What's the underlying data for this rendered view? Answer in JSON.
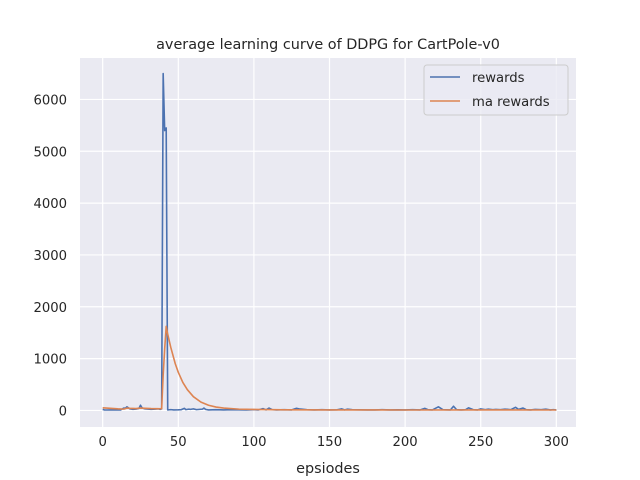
{
  "chart_data": {
    "type": "line",
    "title": "average learning curve of DDPG for CartPole-v0",
    "xlabel": "epsiodes",
    "ylabel": "",
    "xlim": [
      -15,
      313
    ],
    "ylim": [
      -320,
      6800
    ],
    "xticks": [
      0,
      50,
      100,
      150,
      200,
      250,
      300
    ],
    "yticks": [
      0,
      1000,
      2000,
      3000,
      4000,
      5000,
      6000
    ],
    "grid": true,
    "legend_position": "top-right",
    "series": [
      {
        "name": "rewards",
        "color": "#4c72b0",
        "points": [
          [
            0,
            20
          ],
          [
            1,
            10
          ],
          [
            3,
            8
          ],
          [
            5,
            9
          ],
          [
            8,
            10
          ],
          [
            10,
            12
          ],
          [
            12,
            10
          ],
          [
            13,
            30
          ],
          [
            14,
            45
          ],
          [
            15,
            40
          ],
          [
            16,
            70
          ],
          [
            17,
            50
          ],
          [
            18,
            30
          ],
          [
            20,
            20
          ],
          [
            22,
            25
          ],
          [
            24,
            40
          ],
          [
            25,
            100
          ],
          [
            26,
            50
          ],
          [
            28,
            30
          ],
          [
            30,
            25
          ],
          [
            32,
            20
          ],
          [
            35,
            25
          ],
          [
            37,
            30
          ],
          [
            38,
            20
          ],
          [
            39,
            30
          ],
          [
            40,
            6500
          ],
          [
            41,
            5400
          ],
          [
            42,
            5450
          ],
          [
            43,
            10
          ],
          [
            45,
            15
          ],
          [
            47,
            10
          ],
          [
            50,
            12
          ],
          [
            52,
            15
          ],
          [
            54,
            40
          ],
          [
            55,
            15
          ],
          [
            57,
            25
          ],
          [
            58,
            20
          ],
          [
            60,
            30
          ],
          [
            62,
            15
          ],
          [
            64,
            20
          ],
          [
            66,
            25
          ],
          [
            67,
            45
          ],
          [
            68,
            20
          ],
          [
            70,
            10
          ],
          [
            75,
            15
          ],
          [
            80,
            10
          ],
          [
            85,
            15
          ],
          [
            90,
            12
          ],
          [
            95,
            10
          ],
          [
            100,
            15
          ],
          [
            103,
            10
          ],
          [
            106,
            35
          ],
          [
            108,
            10
          ],
          [
            110,
            45
          ],
          [
            112,
            15
          ],
          [
            115,
            10
          ],
          [
            120,
            15
          ],
          [
            125,
            10
          ],
          [
            128,
            40
          ],
          [
            130,
            30
          ],
          [
            135,
            15
          ],
          [
            140,
            10
          ],
          [
            145,
            15
          ],
          [
            150,
            10
          ],
          [
            155,
            12
          ],
          [
            158,
            30
          ],
          [
            160,
            10
          ],
          [
            162,
            25
          ],
          [
            165,
            15
          ],
          [
            170,
            12
          ],
          [
            175,
            10
          ],
          [
            180,
            10
          ],
          [
            185,
            15
          ],
          [
            190,
            10
          ],
          [
            195,
            12
          ],
          [
            200,
            10
          ],
          [
            205,
            15
          ],
          [
            210,
            10
          ],
          [
            213,
            40
          ],
          [
            215,
            15
          ],
          [
            218,
            10
          ],
          [
            222,
            70
          ],
          [
            225,
            15
          ],
          [
            230,
            10
          ],
          [
            232,
            80
          ],
          [
            234,
            15
          ],
          [
            237,
            10
          ],
          [
            240,
            15
          ],
          [
            242,
            50
          ],
          [
            245,
            15
          ],
          [
            248,
            10
          ],
          [
            250,
            30
          ],
          [
            253,
            15
          ],
          [
            255,
            25
          ],
          [
            258,
            15
          ],
          [
            260,
            20
          ],
          [
            263,
            15
          ],
          [
            266,
            25
          ],
          [
            270,
            15
          ],
          [
            273,
            60
          ],
          [
            275,
            20
          ],
          [
            278,
            45
          ],
          [
            280,
            15
          ],
          [
            283,
            10
          ],
          [
            286,
            20
          ],
          [
            290,
            15
          ],
          [
            293,
            25
          ],
          [
            296,
            10
          ],
          [
            298,
            15
          ],
          [
            300,
            10
          ]
        ]
      },
      {
        "name": "ma rewards",
        "color": "#dd8452",
        "points": [
          [
            0,
            50
          ],
          [
            5,
            40
          ],
          [
            10,
            30
          ],
          [
            14,
            25
          ],
          [
            16,
            45
          ],
          [
            18,
            40
          ],
          [
            22,
            35
          ],
          [
            25,
            45
          ],
          [
            28,
            40
          ],
          [
            32,
            35
          ],
          [
            36,
            33
          ],
          [
            39,
            32
          ],
          [
            40,
            680
          ],
          [
            41,
            1190
          ],
          [
            42,
            1620
          ],
          [
            43,
            1470
          ],
          [
            45,
            1220
          ],
          [
            48,
            900
          ],
          [
            50,
            735
          ],
          [
            53,
            540
          ],
          [
            56,
            400
          ],
          [
            60,
            265
          ],
          [
            65,
            160
          ],
          [
            70,
            100
          ],
          [
            75,
            65
          ],
          [
            80,
            45
          ],
          [
            90,
            25
          ],
          [
            100,
            18
          ],
          [
            120,
            12
          ],
          [
            150,
            10
          ],
          [
            200,
            8
          ],
          [
            250,
            10
          ],
          [
            300,
            8
          ]
        ]
      }
    ]
  }
}
